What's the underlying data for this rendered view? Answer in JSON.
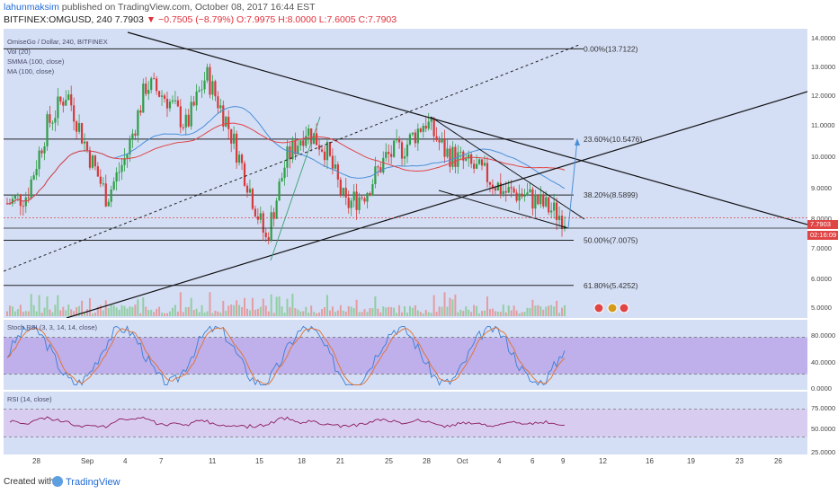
{
  "header": {
    "author": "lahunmaksim",
    "published_text": "published on TradingView.com, October 08, 2017 16:44 EST",
    "symbol": "BITFINEX:OMGUSD, 240",
    "last": "7.7903",
    "change": "▼ −0.7505 (−8.79%)",
    "ohlc": "O:7.9975 H:8.0000 L:7.6005 C:7.7903"
  },
  "legend": {
    "title": "OmiseGo / Dollar, 240, BITFINEX",
    "vol": "Vol (20)",
    "smma": "SMMA (100, close)",
    "ma": "MA (100, close)"
  },
  "fib_labels": [
    "0.00%(13.7122)",
    "23.60%(10.5476)",
    "38.20%(8.5899)",
    "50.00%(7.0075)",
    "61.80%(5.4252)"
  ],
  "price_axis": [
    "14.0000",
    "13.0000",
    "12.0000",
    "11.0000",
    "10.0000",
    "9.0000",
    "8.0000",
    "7.0000",
    "6.0000",
    "5.0000"
  ],
  "price_tag": "7.7903",
  "time_tag": "02:16:09",
  "stoch": {
    "label": "Stoch RSI (3, 3, 14, 14, close)",
    "axis": [
      "80.0000",
      "40.0000",
      "0.0000"
    ]
  },
  "rsi": {
    "label": "RSI (14, close)",
    "axis": [
      "75.0000",
      "50.0000",
      "25.0000"
    ]
  },
  "xaxis_labels": [
    "28",
    "Sep",
    "4",
    "7",
    "11",
    "15",
    "18",
    "21",
    "25",
    "28",
    "Oct",
    "4",
    "6",
    "9",
    "12",
    "16",
    "19",
    "23",
    "26"
  ],
  "footer": {
    "created": "Created with",
    "brand": "TradingView"
  },
  "colors": {
    "pane_bg": "#d4dff6",
    "up": "#2e9e46",
    "down": "#d63a3a",
    "smma": "#4a8fd6",
    "ma": "#e04545",
    "stoch_band": "#b79ae6",
    "rsi_band": "#d8c8f0",
    "rsi_line": "#8c1a5a"
  },
  "chart_data": {
    "type": "candlestick",
    "title": "OmiseGo / Dollar, 240, BITFINEX",
    "x": [
      "Aug 26",
      "Aug 28",
      "Aug 30",
      "Sep 1",
      "Sep 3",
      "Sep 4",
      "Sep 5",
      "Sep 7",
      "Sep 8",
      "Sep 10",
      "Sep 11",
      "Sep 12",
      "Sep 14",
      "Sep 15",
      "Sep 16",
      "Sep 18",
      "Sep 19",
      "Sep 21",
      "Sep 23",
      "Sep 25",
      "Sep 27",
      "Sep 28",
      "Sep 29",
      "Oct 1",
      "Oct 2",
      "Oct 4",
      "Oct 6",
      "Oct 8",
      "Oct 9"
    ],
    "close": [
      8.3,
      8.6,
      11.0,
      12.2,
      10.2,
      8.5,
      10.0,
      12.5,
      12.0,
      11.0,
      12.8,
      11.2,
      9.2,
      7.0,
      9.8,
      10.9,
      10.2,
      8.2,
      8.7,
      9.9,
      10.3,
      11.2,
      10.1,
      9.7,
      9.3,
      8.7,
      8.6,
      8.2,
      7.79
    ],
    "fib_levels": [
      {
        "pct": "0.00%",
        "value": 13.7122
      },
      {
        "pct": "23.60%",
        "value": 10.5476
      },
      {
        "pct": "38.20%",
        "value": 8.5899
      },
      {
        "pct": "50.00%",
        "value": 7.0075
      },
      {
        "pct": "61.80%",
        "value": 5.4252
      }
    ],
    "ylim": [
      4.6,
      14.1
    ]
  }
}
